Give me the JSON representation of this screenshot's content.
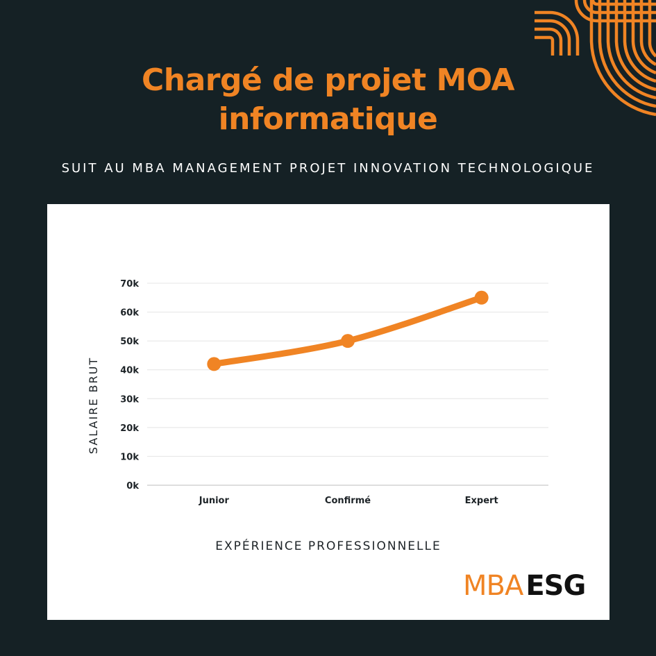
{
  "title_lines": [
    "Chargé de projet MOA",
    "informatique"
  ],
  "subtitle": "SUIT AU MBA MANAGEMENT PROJET INNOVATION TECHNOLOGIQUE",
  "logo": {
    "part1": "MBA",
    "part2": "ESG"
  },
  "colors": {
    "background": "#152125",
    "accent": "#f08424",
    "card": "#ffffff",
    "text_dark": "#1d2327",
    "grid": "#e4e4e4"
  },
  "chart_data": {
    "type": "line",
    "categories": [
      "Junior",
      "Confirmé",
      "Expert"
    ],
    "series": [
      {
        "values": [
          42000,
          50000,
          65000
        ]
      }
    ],
    "y_ticks": [
      "0k",
      "10k",
      "20k",
      "30k",
      "40k",
      "50k",
      "60k",
      "70k"
    ],
    "ylim": [
      0,
      70000
    ],
    "xlabel": "EXPÉRIENCE PROFESSIONNELLE",
    "ylabel": "SALAIRE BRUT",
    "grid": true
  }
}
